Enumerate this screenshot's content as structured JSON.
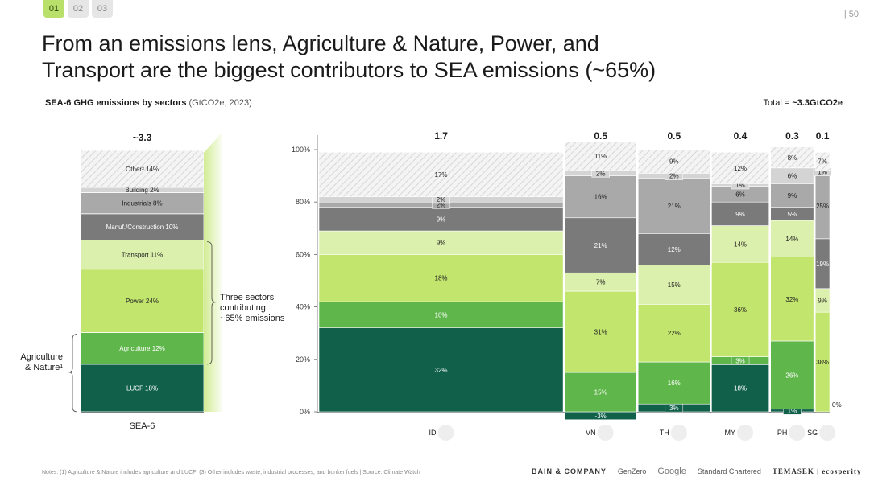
{
  "header": {
    "tabs": [
      {
        "label": "01",
        "active": true
      },
      {
        "label": "02",
        "active": false
      },
      {
        "label": "03",
        "active": false
      }
    ],
    "page_number": "50",
    "title_line1": "From an emissions lens, Agriculture & Nature, Power, and",
    "title_line2": "Transport are the biggest contributors to SEA emissions (~65%)",
    "subtitle_bold": "SEA-6 GHG emissions by sectors",
    "subtitle_unit": "(GtCO2e, 2023)",
    "total_prefix": "Total = ",
    "total_value": "~3.3GtCO2e"
  },
  "chart_data": [
    {
      "type": "stacked-bar",
      "title": "SEA-6",
      "total_label": "~3.3",
      "segments": [
        {
          "label": "LUCF 18%",
          "value": 18,
          "color": "#10604a"
        },
        {
          "label": "Agriculture 12%",
          "value": 12,
          "color": "#5fb64a"
        },
        {
          "label": "Power 24%",
          "value": 24,
          "color": "#c2e56e"
        },
        {
          "label": "Transport 11%",
          "value": 11,
          "color": "#dcf0ad"
        },
        {
          "label": "Manuf./Construction 10%",
          "value": 10,
          "color": "#7a7a7a"
        },
        {
          "label": "Industrials 8%",
          "value": 8,
          "color": "#a9a9a9"
        },
        {
          "label": "Building 2%",
          "value": 2,
          "color": "#d4d4d4"
        },
        {
          "label": "Other³ 14%",
          "value": 14,
          "color": "hatch"
        }
      ],
      "bracket_label_lines": [
        "Three sectors",
        "contributing",
        "~65% emissions"
      ],
      "ag_nature_label_lines": [
        "Agriculture",
        "& Nature¹"
      ]
    },
    {
      "type": "marimekko",
      "y_ticks": [
        "0%",
        "20%",
        "40%",
        "60%",
        "80%",
        "100%"
      ],
      "series_colors": {
        "lucf": "#10604a",
        "agriculture": "#5fb64a",
        "power": "#c2e56e",
        "transport": "#dcf0ad",
        "manuf": "#7a7a7a",
        "industrials": "#a9a9a9",
        "building": "#d4d4d4",
        "other": "hatch"
      },
      "countries": [
        {
          "code": "ID",
          "total": "1.7",
          "width": 1.7,
          "values": {
            "lucf": 32,
            "agriculture": 10,
            "power": 18,
            "transport": 9,
            "manuf": 9,
            "industrials": 2,
            "building": 2,
            "other": 17
          }
        },
        {
          "code": "VN",
          "total": "0.5",
          "width": 0.5,
          "values": {
            "lucf": -3,
            "agriculture": 15,
            "power": 31,
            "transport": 7,
            "manuf": 21,
            "industrials": 16,
            "building": 2,
            "other": 11
          }
        },
        {
          "code": "TH",
          "total": "0.5",
          "width": 0.5,
          "values": {
            "lucf": 3,
            "agriculture": 16,
            "power": 22,
            "transport": 15,
            "manuf": 12,
            "industrials": 21,
            "building": 2,
            "other": 9
          }
        },
        {
          "code": "MY",
          "total": "0.4",
          "width": 0.4,
          "values": {
            "lucf": 18,
            "agriculture": 3,
            "power": 36,
            "transport": 14,
            "manuf": 9,
            "industrials": 6,
            "building": 1,
            "other": 12
          }
        },
        {
          "code": "PH",
          "total": "0.3",
          "width": 0.3,
          "values": {
            "lucf": 1,
            "agriculture": 26,
            "power": 32,
            "transport": 14,
            "manuf": 5,
            "industrials": 9,
            "building": 6,
            "other": 8
          }
        },
        {
          "code": "SG",
          "total": "0.1",
          "width": 0.1,
          "values": {
            "lucf": 0,
            "agriculture": 0,
            "power": 38,
            "transport": 9,
            "manuf": 19,
            "industrials": 25,
            "building": 1,
            "other": 7
          }
        }
      ]
    }
  ],
  "footer": {
    "notes": "Notes: (1) Agriculture & Nature includes agriculture and LUCF; (3) Other includes waste, industrial processes, and bunker fuels | Source: Climate Watch",
    "logos": [
      "BAIN & COMPANY",
      "GenZero",
      "Google",
      "Standard Chartered",
      "TEMASEK | ecosperity"
    ]
  }
}
